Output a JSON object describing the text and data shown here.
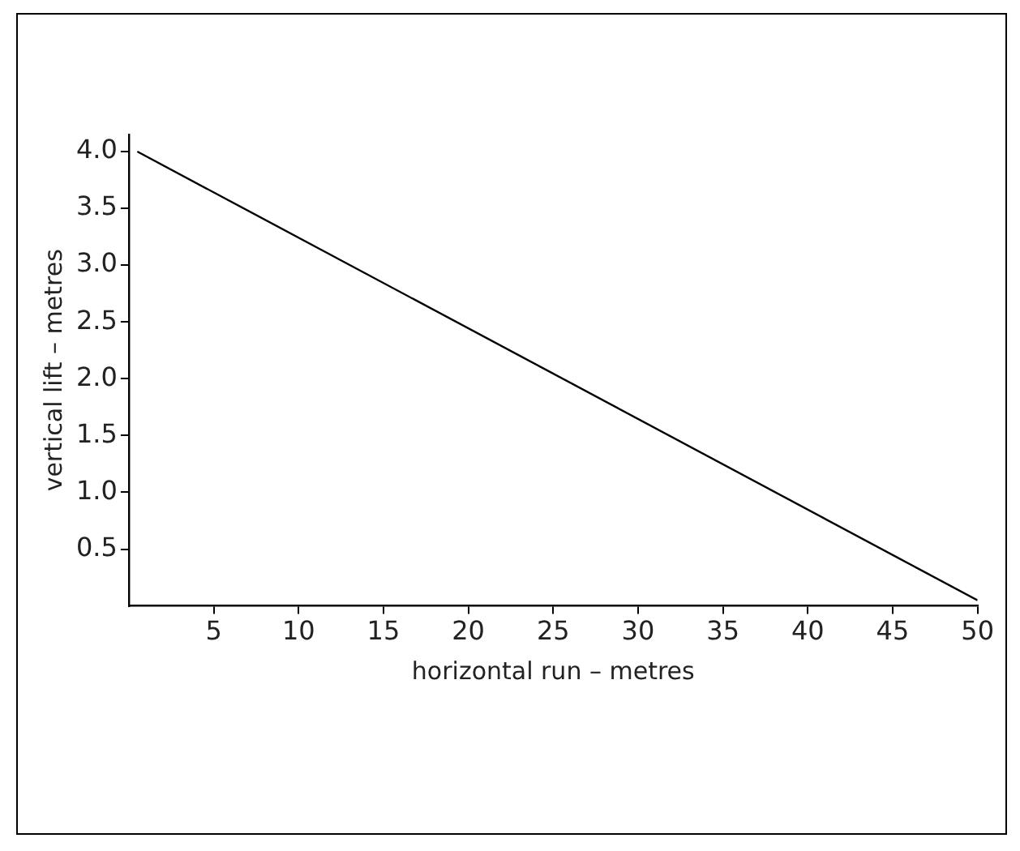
{
  "chart_data": {
    "type": "line",
    "xlabel": "horizontal run – metres",
    "ylabel": "vertical lift – metres",
    "x": [
      0.5,
      50
    ],
    "series": [
      {
        "color": "#000000",
        "values": [
          4.0,
          0.05
        ]
      }
    ],
    "xlim": [
      0,
      50
    ],
    "xticks": [
      5,
      10,
      15,
      20,
      25,
      30,
      35,
      40,
      45,
      50
    ],
    "ylim": [
      0,
      4.15
    ],
    "yticks": [
      0.5,
      {
        "value": 1,
        "label": "1.0"
      },
      1.5,
      {
        "value": 2,
        "label": "2.0"
      },
      2.5,
      {
        "value": 3,
        "label": "3.0"
      },
      3.5,
      {
        "value": 4,
        "label": "4.0"
      }
    ],
    "grid": false,
    "legend": false,
    "marker": "none",
    "line_style": "solid"
  }
}
